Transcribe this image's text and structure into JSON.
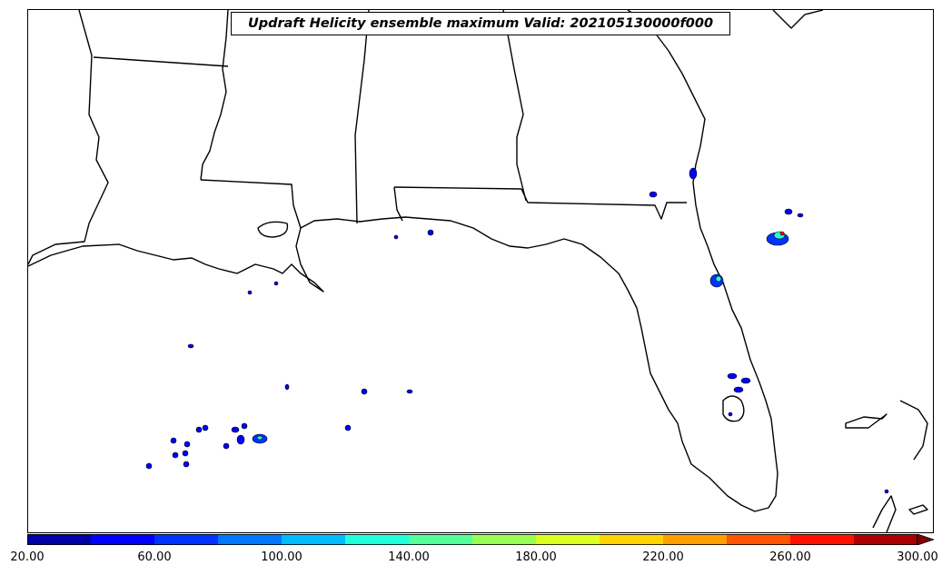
{
  "title": "Updraft Helicity ensemble maximum Valid: 202105130000f000",
  "colorbar": {
    "levels": [
      20,
      40,
      60,
      80,
      100,
      120,
      140,
      160,
      180,
      200,
      220,
      240,
      260,
      280,
      300
    ],
    "colors": [
      "#0000a6",
      "#0000ff",
      "#0033ff",
      "#0077ff",
      "#00bbff",
      "#22ffdd",
      "#55ff99",
      "#99ff55",
      "#ddff22",
      "#ffd400",
      "#ffa000",
      "#ff5500",
      "#ff1100",
      "#aa0000",
      "#800000"
    ],
    "extend": "max",
    "tick_labels": [
      "20.00",
      "60.00",
      "100.00",
      "140.00",
      "180.00",
      "220.00",
      "260.00",
      "300.00"
    ]
  },
  "map": {
    "region": "US Gulf Coast and Florida",
    "land_color": "#ffffff",
    "water_color": "#ffffff",
    "border_color": "#000000"
  }
}
